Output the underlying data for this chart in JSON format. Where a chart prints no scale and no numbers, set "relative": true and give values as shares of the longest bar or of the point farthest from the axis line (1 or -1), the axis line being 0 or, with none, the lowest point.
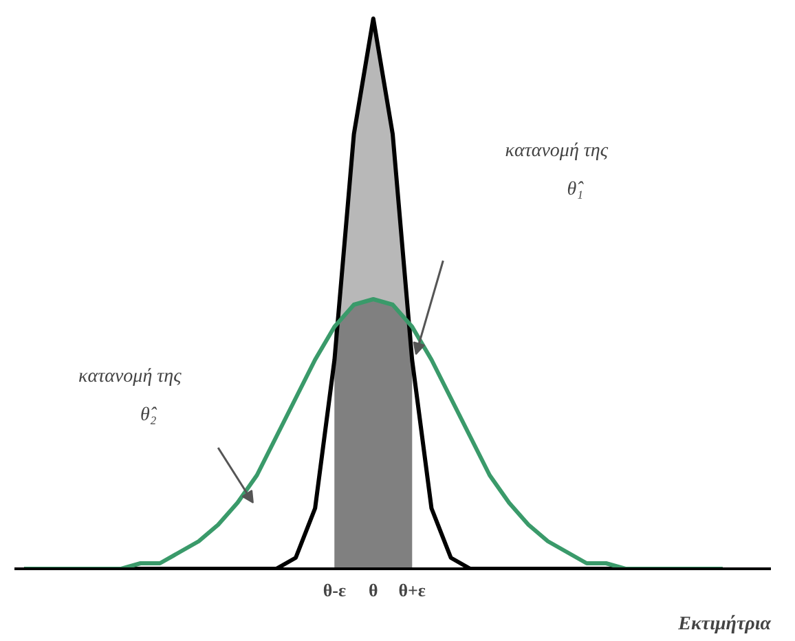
{
  "chart_data": {
    "type": "line",
    "relative": true,
    "xlabel": "Εκτιμήτρια",
    "categories": [
      null,
      null,
      null,
      null,
      null,
      null,
      null,
      null,
      null,
      null,
      null,
      null,
      null,
      null,
      null,
      null,
      "θ-ε",
      null,
      "θ",
      null,
      "θ+ε",
      null,
      null,
      null,
      null,
      null,
      null,
      null,
      null,
      null,
      null,
      null,
      null,
      null,
      null,
      null,
      null
    ],
    "series": [
      {
        "type": "area",
        "color": "#b8b8b8",
        "values": [
          null,
          null,
          null,
          null,
          null,
          null,
          null,
          null,
          null,
          null,
          null,
          null,
          null,
          null,
          null,
          null,
          0.38,
          0.79,
          1,
          0.79,
          0.38,
          null,
          null,
          null,
          null,
          null,
          null,
          null,
          null,
          null,
          null,
          null,
          null,
          null,
          null,
          null,
          null
        ]
      },
      {
        "type": "area",
        "color": "#808080",
        "values": [
          null,
          null,
          null,
          null,
          null,
          null,
          null,
          null,
          null,
          null,
          null,
          null,
          null,
          null,
          null,
          null,
          0.44,
          0.48,
          0.49,
          0.48,
          0.44,
          null,
          null,
          null,
          null,
          null,
          null,
          null,
          null,
          null,
          null,
          null,
          null,
          null,
          null,
          null,
          null
        ]
      },
      {
        "color": "#000000",
        "values": [
          0,
          0,
          0,
          0,
          0,
          0,
          0,
          0,
          0,
          0,
          0,
          0,
          0,
          0,
          0.02,
          0.11,
          0.38,
          0.79,
          1,
          0.79,
          0.38,
          0.11,
          0.02,
          0,
          0,
          0,
          0,
          0,
          0,
          0,
          0,
          0,
          0,
          0,
          0,
          0,
          0
        ]
      },
      {
        "color": "#3a9a6a",
        "values": [
          0,
          0,
          0,
          0,
          0,
          0,
          0.01,
          0.01,
          0.03,
          0.05,
          0.08,
          0.12,
          0.17,
          0.24,
          0.31,
          0.38,
          0.44,
          0.48,
          0.49,
          0.48,
          0.44,
          0.38,
          0.31,
          0.24,
          0.17,
          0.12,
          0.08,
          0.05,
          0.03,
          0.01,
          0.01,
          0,
          0,
          0,
          0,
          0,
          0
        ]
      }
    ],
    "annotations": [
      "κατανομή της\nθ̂₁",
      "κατανομή της\nθ̂₂"
    ],
    "grid": false,
    "marker": "none",
    "line_style": "solid"
  }
}
